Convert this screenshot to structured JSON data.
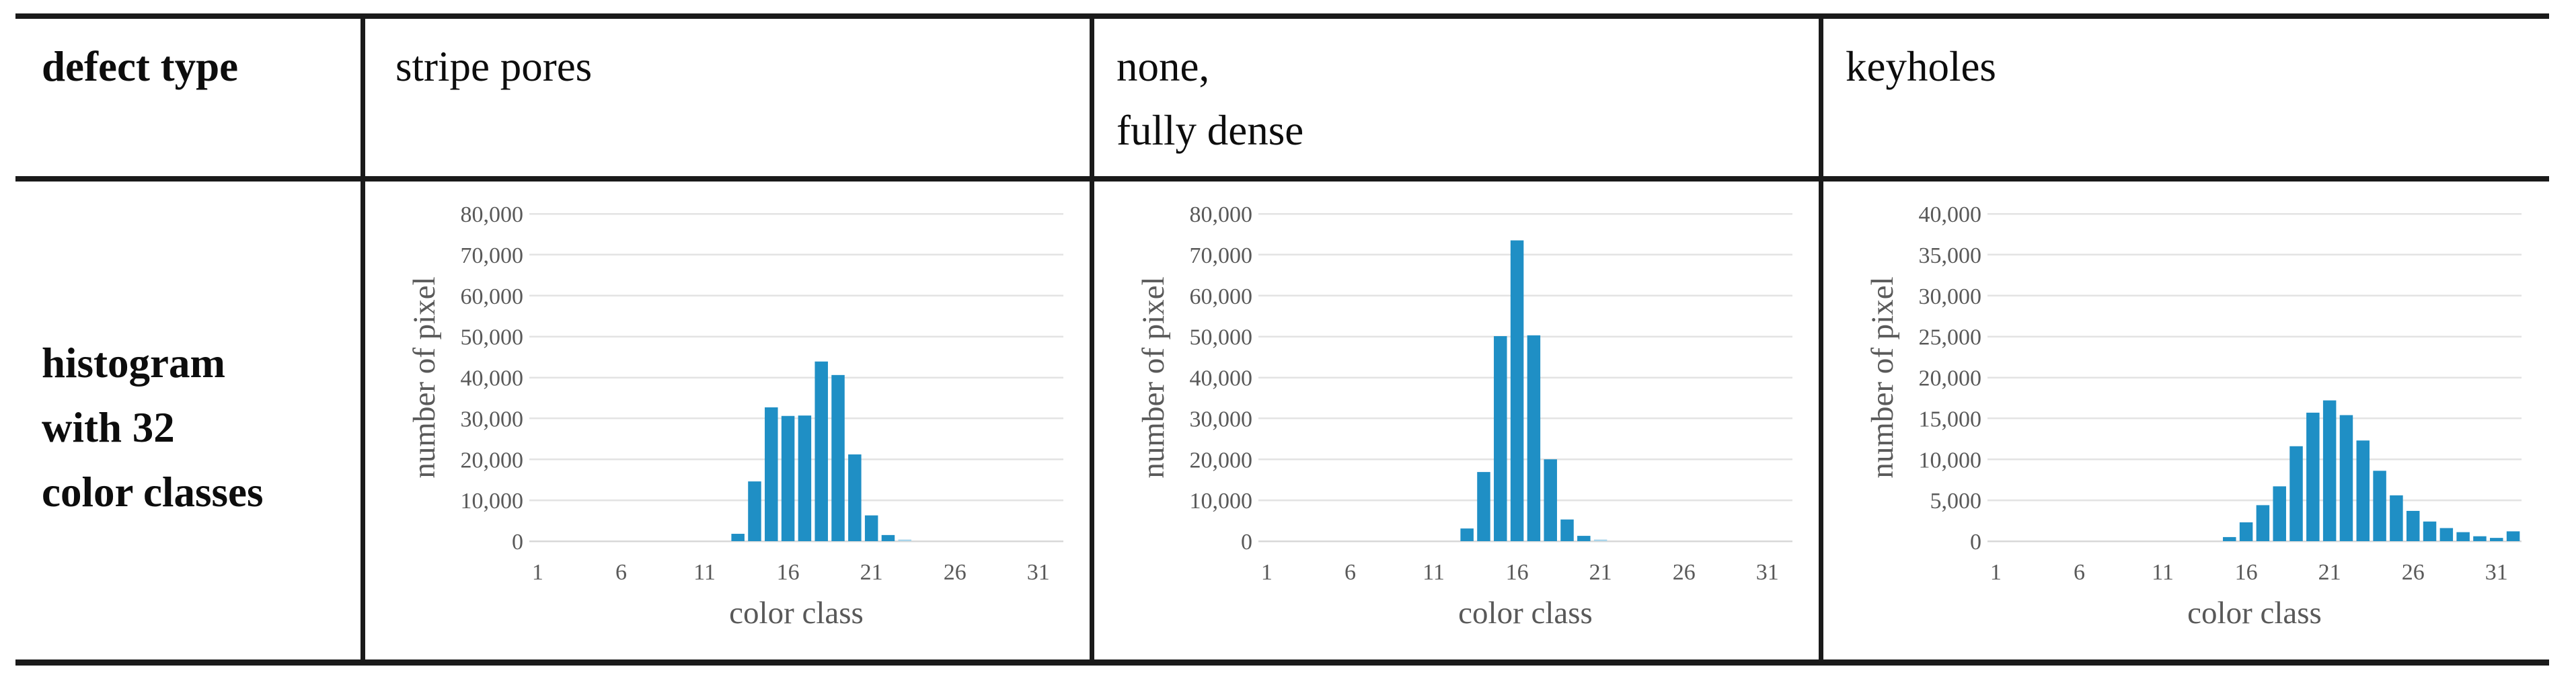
{
  "table": {
    "header": {
      "row_label": "defect type",
      "columns": [
        {
          "lines": [
            "stripe pores"
          ]
        },
        {
          "lines": [
            "none,",
            "fully dense"
          ]
        },
        {
          "lines": [
            "keyholes"
          ]
        }
      ]
    },
    "body_row_label_lines": [
      "histogram",
      "with 32",
      "color classes"
    ]
  },
  "styles": {
    "bar_color": "#1f8fc5",
    "bar_color_muted": "#a9d4ea",
    "grid_color": "#e3e3e3",
    "axis_text_color": "#595959",
    "border_color": "#1a1a1a"
  },
  "chart_data": [
    {
      "type": "bar",
      "defect_type": "stripe pores",
      "xlabel": "color class",
      "ylabel": "number of pixel",
      "x_ticks": [
        1,
        6,
        11,
        16,
        21,
        26,
        31
      ],
      "ylim": [
        0,
        80000
      ],
      "y_step": 10000,
      "grid": true,
      "categories": [
        1,
        2,
        3,
        4,
        5,
        6,
        7,
        8,
        9,
        10,
        11,
        12,
        13,
        14,
        15,
        16,
        17,
        18,
        19,
        20,
        21,
        22,
        23,
        24,
        25,
        26,
        27,
        28,
        29,
        30,
        31,
        32
      ],
      "values": [
        0,
        0,
        0,
        0,
        0,
        0,
        0,
        0,
        0,
        0,
        0,
        0,
        1800,
        14600,
        32700,
        30600,
        30700,
        43900,
        40600,
        21200,
        6300,
        1500,
        400,
        0,
        0,
        0,
        0,
        0,
        0,
        0,
        0,
        0
      ],
      "muted_classes": [
        23
      ]
    },
    {
      "type": "bar",
      "defect_type": "none, fully dense",
      "xlabel": "color class",
      "ylabel": "number of pixel",
      "x_ticks": [
        1,
        6,
        11,
        16,
        21,
        26,
        31
      ],
      "ylim": [
        0,
        80000
      ],
      "y_step": 10000,
      "grid": true,
      "categories": [
        1,
        2,
        3,
        4,
        5,
        6,
        7,
        8,
        9,
        10,
        11,
        12,
        13,
        14,
        15,
        16,
        17,
        18,
        19,
        20,
        21,
        22,
        23,
        24,
        25,
        26,
        27,
        28,
        29,
        30,
        31,
        32
      ],
      "values": [
        0,
        0,
        0,
        0,
        0,
        0,
        0,
        0,
        0,
        0,
        0,
        0,
        3100,
        16900,
        50100,
        73500,
        50300,
        20000,
        5300,
        1300,
        400,
        0,
        0,
        0,
        0,
        0,
        0,
        0,
        0,
        0,
        0,
        0
      ],
      "muted_classes": [
        21
      ]
    },
    {
      "type": "bar",
      "defect_type": "keyholes",
      "xlabel": "color class",
      "ylabel": "number of pixel",
      "x_ticks": [
        1,
        6,
        11,
        16,
        21,
        26,
        31
      ],
      "ylim": [
        0,
        40000
      ],
      "y_step": 5000,
      "grid": true,
      "categories": [
        1,
        2,
        3,
        4,
        5,
        6,
        7,
        8,
        9,
        10,
        11,
        12,
        13,
        14,
        15,
        16,
        17,
        18,
        19,
        20,
        21,
        22,
        23,
        24,
        25,
        26,
        27,
        28,
        29,
        30,
        31,
        32
      ],
      "values": [
        0,
        0,
        0,
        0,
        0,
        0,
        0,
        0,
        0,
        0,
        0,
        0,
        0,
        0,
        500,
        2300,
        4400,
        6700,
        11600,
        15700,
        17200,
        15400,
        12300,
        8600,
        5600,
        3700,
        2400,
        1600,
        1100,
        600,
        400,
        1200
      ],
      "muted_classes": []
    }
  ]
}
